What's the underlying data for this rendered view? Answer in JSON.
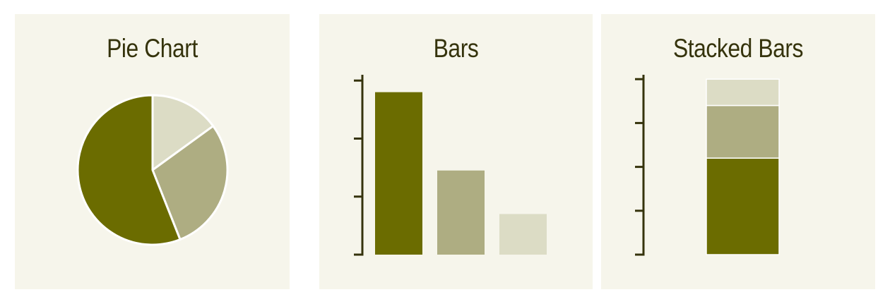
{
  "colors": {
    "dark": "#6b6c00",
    "medium": "#aead82",
    "light": "#dcdcc5",
    "axis": "#35330c",
    "panel": "#f6f5eb"
  },
  "chart_data": [
    {
      "type": "pie",
      "title": "Pie Chart",
      "slices": [
        {
          "value": 15,
          "color": "#dcdcc5"
        },
        {
          "value": 29,
          "color": "#aead82"
        },
        {
          "value": 56,
          "color": "#6b6c00"
        }
      ]
    },
    {
      "type": "bar",
      "title": "Bars",
      "categories": [
        "",
        "",
        ""
      ],
      "values": [
        2.8,
        1.45,
        0.7
      ],
      "colors": [
        "#6b6c00",
        "#aead82",
        "#dcdcc5"
      ],
      "ylim": [
        0,
        3.1
      ],
      "yticks": [
        0,
        1,
        2,
        3
      ],
      "grid": false,
      "tick_labels": false
    },
    {
      "type": "bar",
      "stacked": true,
      "title": "Stacked Bars",
      "categories": [
        ""
      ],
      "series": [
        {
          "values": [
            2.2
          ],
          "color": "#6b6c00"
        },
        {
          "values": [
            1.2
          ],
          "color": "#aead82"
        },
        {
          "values": [
            0.6
          ],
          "color": "#dcdcc5"
        }
      ],
      "ylim": [
        0,
        4.1
      ],
      "yticks": [
        0,
        1,
        2,
        3,
        4
      ],
      "grid": false,
      "tick_labels": false
    }
  ]
}
